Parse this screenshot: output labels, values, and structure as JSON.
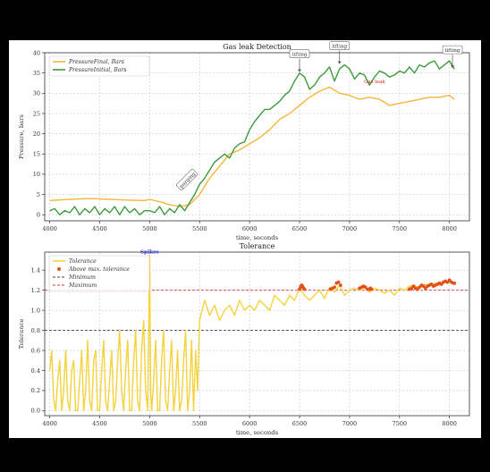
{
  "chart_data": [
    {
      "type": "line",
      "title": "Gas leak Detection",
      "xlabel": "time, seconds",
      "ylabel": "Pressure, bars",
      "xlim": [
        3950,
        8200
      ],
      "ylim": [
        -1.5,
        40
      ],
      "xticks": [
        4000,
        4500,
        5000,
        5500,
        6000,
        6500,
        7000,
        7500,
        8000
      ],
      "yticks": [
        0,
        5,
        10,
        15,
        20,
        25,
        30,
        35,
        40
      ],
      "grid": true,
      "legend_position": "top-left",
      "colors": {
        "final": "#f5b63c",
        "initial": "#3d9a3d"
      },
      "series": [
        {
          "name": "PressureFinal, Bars",
          "x": [
            4000,
            4200,
            4400,
            4600,
            4800,
            4950,
            5000,
            5100,
            5200,
            5300,
            5400,
            5500,
            5600,
            5700,
            5800,
            5900,
            6000,
            6100,
            6200,
            6300,
            6400,
            6500,
            6600,
            6700,
            6800,
            6900,
            7000,
            7100,
            7200,
            7300,
            7400,
            7500,
            7600,
            7700,
            7800,
            7900,
            8000,
            8050
          ],
          "values": [
            3.5,
            3.8,
            4.0,
            3.8,
            3.6,
            3.5,
            3.8,
            3.2,
            2.5,
            2.0,
            2.5,
            5.0,
            9.0,
            12.0,
            15.0,
            16.0,
            17.5,
            19.0,
            21.0,
            23.5,
            25.0,
            27.0,
            29.0,
            30.5,
            31.5,
            30.0,
            29.5,
            28.5,
            29.0,
            28.5,
            27.0,
            27.5,
            28.0,
            28.5,
            29.0,
            29.0,
            29.5,
            28.5
          ]
        },
        {
          "name": "PressureInitial, Bars",
          "x": [
            4000,
            4050,
            4100,
            4150,
            4200,
            4250,
            4300,
            4350,
            4400,
            4450,
            4500,
            4550,
            4600,
            4650,
            4700,
            4750,
            4800,
            4850,
            4900,
            4950,
            5000,
            5050,
            5100,
            5150,
            5200,
            5250,
            5300,
            5350,
            5400,
            5450,
            5500,
            5550,
            5600,
            5650,
            5700,
            5750,
            5800,
            5850,
            5900,
            5950,
            6000,
            6050,
            6100,
            6150,
            6200,
            6250,
            6300,
            6350,
            6400,
            6450,
            6500,
            6550,
            6600,
            6650,
            6700,
            6750,
            6800,
            6850,
            6900,
            6950,
            7000,
            7050,
            7100,
            7150,
            7200,
            7250,
            7300,
            7350,
            7400,
            7450,
            7500,
            7550,
            7600,
            7650,
            7700,
            7750,
            7800,
            7850,
            7900,
            7950,
            8000,
            8050
          ],
          "values": [
            1.0,
            1.5,
            0.0,
            1.0,
            0.5,
            2.0,
            0.0,
            1.5,
            0.5,
            2.0,
            0.0,
            1.5,
            0.5,
            2.0,
            0.0,
            2.0,
            0.5,
            1.5,
            0.0,
            1.0,
            1.0,
            0.5,
            2.0,
            0.0,
            1.5,
            0.5,
            2.5,
            1.0,
            3.0,
            5.0,
            7.5,
            9.0,
            11.0,
            13.0,
            14.0,
            15.0,
            14.0,
            16.5,
            17.5,
            18.0,
            21.0,
            23.0,
            24.5,
            26.0,
            26.0,
            27.0,
            28.0,
            29.5,
            30.5,
            33.0,
            35.0,
            34.0,
            31.0,
            32.0,
            34.0,
            35.0,
            36.5,
            33.0,
            36.0,
            37.0,
            36.0,
            33.5,
            35.0,
            34.5,
            32.0,
            34.0,
            35.5,
            35.0,
            34.0,
            34.5,
            35.5,
            35.0,
            36.5,
            35.0,
            37.0,
            36.5,
            37.5,
            38.0,
            36.0,
            37.0,
            38.0,
            36.0
          ]
        }
      ],
      "annotations": [
        {
          "text": "purging",
          "x": 5380,
          "y": 8.5
        },
        {
          "text": "lifting",
          "x": 6500,
          "y": 35.0
        },
        {
          "text": "lifting",
          "x": 6900,
          "y": 37.0
        },
        {
          "text": "Gas leak",
          "x": 7250,
          "y": 32.5
        },
        {
          "text": "lifting",
          "x": 8030,
          "y": 36.0
        }
      ]
    },
    {
      "type": "line",
      "title": "Tolerance",
      "xlabel": "time, seconds",
      "ylabel": "Tolerance",
      "xlim": [
        3950,
        8200
      ],
      "ylim": [
        -0.05,
        1.58
      ],
      "xticks": [
        4000,
        4500,
        5000,
        5500,
        6000,
        6500,
        7000,
        7500,
        8000
      ],
      "yticks": [
        0.0,
        0.2,
        0.4,
        0.6,
        0.8,
        1.0,
        1.2,
        1.4
      ],
      "grid": true,
      "legend_position": "top-left",
      "minimum": 0.8,
      "maximum": 1.2,
      "colors": {
        "tolerance": "#f5d33c",
        "above": "#e0521a",
        "minimum": "#444444",
        "maximum": "#e03030"
      },
      "series": [
        {
          "name": "Tolerance",
          "x": [
            4000,
            4020,
            4040,
            4060,
            4080,
            4100,
            4120,
            4140,
            4160,
            4180,
            4200,
            4220,
            4240,
            4260,
            4280,
            4300,
            4320,
            4340,
            4360,
            4380,
            4400,
            4420,
            4440,
            4460,
            4480,
            4500,
            4520,
            4540,
            4560,
            4580,
            4600,
            4620,
            4640,
            4660,
            4680,
            4700,
            4720,
            4740,
            4760,
            4780,
            4800,
            4820,
            4840,
            4860,
            4880,
            4900,
            4920,
            4940,
            4960,
            4980,
            5000,
            5010,
            5020,
            5040,
            5060,
            5080,
            5100,
            5120,
            5140,
            5160,
            5180,
            5200,
            5220,
            5240,
            5260,
            5280,
            5300,
            5320,
            5340,
            5360,
            5380,
            5400,
            5420,
            5440,
            5460,
            5480,
            5500,
            5550,
            5600,
            5650,
            5700,
            5750,
            5800,
            5850,
            5900,
            5950,
            6000,
            6050,
            6100,
            6150,
            6200,
            6250,
            6300,
            6350,
            6400,
            6450,
            6500,
            6550,
            6600,
            6650,
            6700,
            6750,
            6800,
            6850,
            6900,
            6950,
            7000,
            7050,
            7100,
            7150,
            7200,
            7250,
            7300,
            7350,
            7400,
            7450,
            7500,
            7550,
            7600,
            7650,
            7700,
            7750,
            7800,
            7850,
            7900,
            7950,
            8000,
            8050
          ],
          "values": [
            0.4,
            0.6,
            0.1,
            0.0,
            0.3,
            0.5,
            0.0,
            0.2,
            0.6,
            0.1,
            0.0,
            0.4,
            0.5,
            0.0,
            0.0,
            0.3,
            0.6,
            0.0,
            0.2,
            0.7,
            0.1,
            0.0,
            0.5,
            0.6,
            0.0,
            0.0,
            0.4,
            0.7,
            0.1,
            0.0,
            0.3,
            0.6,
            0.0,
            0.1,
            0.5,
            0.8,
            0.2,
            0.0,
            0.4,
            0.7,
            0.0,
            0.0,
            0.5,
            0.8,
            0.1,
            0.0,
            0.6,
            0.9,
            0.2,
            0.0,
            1.55,
            0.2,
            0.0,
            0.3,
            0.7,
            0.0,
            0.0,
            0.5,
            0.8,
            0.1,
            0.0,
            0.4,
            0.7,
            0.0,
            0.2,
            0.6,
            0.0,
            0.1,
            0.5,
            0.8,
            0.0,
            0.2,
            0.7,
            0.0,
            0.6,
            0.2,
            0.9,
            1.1,
            0.95,
            1.05,
            0.9,
            1.0,
            1.05,
            0.95,
            1.1,
            1.0,
            1.05,
            1.0,
            1.1,
            1.05,
            1.0,
            1.15,
            1.1,
            1.05,
            1.15,
            1.1,
            1.22,
            1.15,
            1.1,
            1.15,
            1.2,
            1.12,
            1.23,
            1.18,
            1.25,
            1.15,
            1.2,
            1.22,
            1.2,
            1.23,
            1.18,
            1.22,
            1.2,
            1.17,
            1.2,
            1.15,
            1.22,
            1.2,
            1.24,
            1.25,
            1.22,
            1.26,
            1.24,
            1.27,
            1.25,
            1.28,
            1.3,
            1.27
          ]
        },
        {
          "name": "Above max. tolerance",
          "x": [
            6500,
            6510,
            6520,
            6530,
            6540,
            6550,
            6810,
            6830,
            6850,
            6870,
            6890,
            6910,
            7100,
            7120,
            7140,
            7160,
            7180,
            7200,
            7210,
            7220,
            7600,
            7620,
            7640,
            7660,
            7680,
            7700,
            7720,
            7740,
            7760,
            7780,
            7800,
            7820,
            7840,
            7860,
            7880,
            7900,
            7920,
            7940,
            7960,
            7980,
            8000,
            8020,
            8040,
            8050
          ],
          "values": [
            1.21,
            1.23,
            1.25,
            1.24,
            1.22,
            1.21,
            1.21,
            1.22,
            1.23,
            1.27,
            1.28,
            1.25,
            1.22,
            1.23,
            1.24,
            1.23,
            1.21,
            1.21,
            1.22,
            1.21,
            1.21,
            1.22,
            1.24,
            1.22,
            1.21,
            1.23,
            1.25,
            1.24,
            1.22,
            1.24,
            1.25,
            1.26,
            1.24,
            1.25,
            1.26,
            1.27,
            1.26,
            1.28,
            1.29,
            1.28,
            1.3,
            1.28,
            1.27,
            1.27
          ]
        },
        {
          "name": "Minimum",
          "values": [
            0.8
          ]
        },
        {
          "name": "Maximum",
          "values": [
            1.2
          ]
        }
      ],
      "annotations": [
        {
          "text": "Spikes",
          "x": 5000,
          "y": 1.55
        }
      ]
    }
  ]
}
